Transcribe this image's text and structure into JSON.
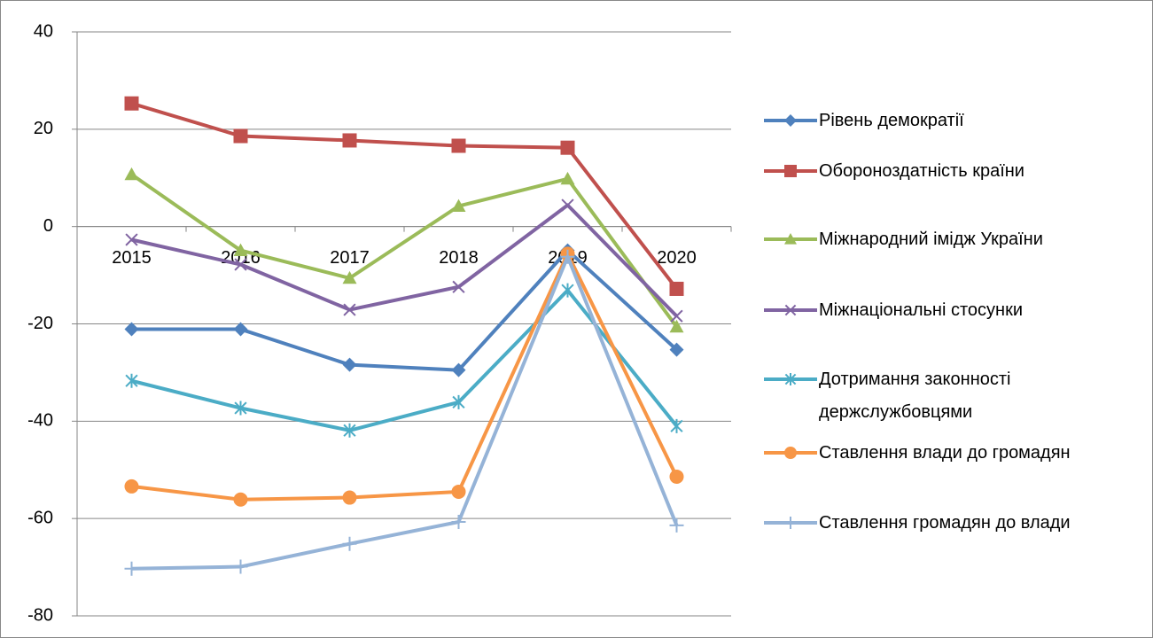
{
  "chart_data": {
    "type": "line",
    "categories": [
      "2015",
      "2016",
      "2017",
      "2018",
      "2019",
      "2020"
    ],
    "ylim": [
      -80,
      40
    ],
    "yticks": [
      -80,
      -60,
      -40,
      -20,
      0,
      20,
      40
    ],
    "grid": true,
    "legend": "right",
    "series": [
      {
        "name": "Рівень демократії",
        "color": "#4f81bd",
        "marker": "diamond",
        "values": [
          -21.1,
          -21.1,
          -28.4,
          -29.5,
          -4.9,
          -25.3
        ]
      },
      {
        "name": "Обороноздатність країни",
        "color": "#c0504d",
        "marker": "square",
        "values": [
          25.3,
          18.6,
          17.7,
          16.6,
          16.2,
          -12.8
        ]
      },
      {
        "name": "Міжнародний імідж України",
        "color": "#9bbb59",
        "marker": "triangle",
        "values": [
          10.7,
          -4.9,
          -10.6,
          4.2,
          9.8,
          -20.6
        ]
      },
      {
        "name": "Міжнаціональні стосунки",
        "color": "#8064a2",
        "marker": "x",
        "values": [
          -2.7,
          -7.8,
          -17.1,
          -12.4,
          4.4,
          -18.4
        ]
      },
      {
        "name": "Дотримання законності держслужбовцями",
        "color": "#4bacc6",
        "marker": "asterisk",
        "values": [
          -31.7,
          -37.3,
          -41.9,
          -36.1,
          -13.1,
          -41.0
        ]
      },
      {
        "name": "Ставлення влади до громадян",
        "color": "#f79646",
        "marker": "circle",
        "values": [
          -53.4,
          -56.1,
          -55.7,
          -54.5,
          -5.6,
          -51.4
        ]
      },
      {
        "name": "Ставлення громадян до влади",
        "color": "#95b3d7",
        "marker": "plus",
        "values": [
          -70.3,
          -69.9,
          -65.2,
          -60.7,
          -6.2,
          -61.4
        ]
      }
    ]
  }
}
